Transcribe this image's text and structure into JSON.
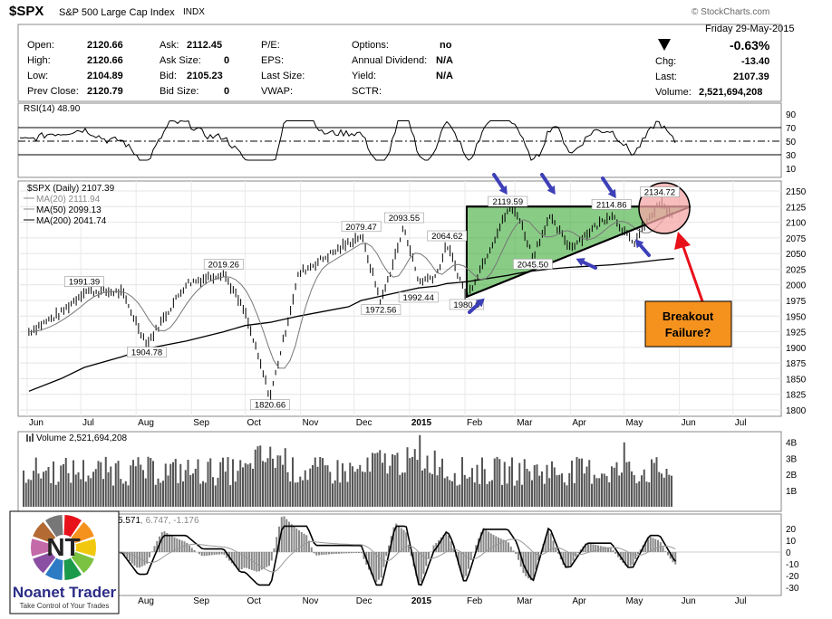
{
  "header": {
    "symbol": "$SPX",
    "name": "S&P 500 Large Cap Index",
    "exchange": "INDX",
    "watermark": "© StockCharts.com",
    "date": "Friday  29-May-2015",
    "pct_change": "-0.63%",
    "open_label": "Open:",
    "open": "2120.66",
    "high_label": "High:",
    "high": "2120.66",
    "low_label": "Low:",
    "low": "2104.89",
    "prev_close_label": "Prev Close:",
    "prev_close": "2120.79",
    "ask_label": "Ask:",
    "ask": "2112.45",
    "ask_size_label": "Ask Size:",
    "ask_size": "0",
    "bid_label": "Bid:",
    "bid": "2105.23",
    "bid_size_label": "Bid Size:",
    "bid_size": "0",
    "pe_label": "P/E:",
    "eps_label": "EPS:",
    "last_size_label": "Last Size:",
    "vwap_label": "VWAP:",
    "options_label": "Options:",
    "options": "no",
    "annual_div_label": "Annual Dividend:",
    "annual_div": "N/A",
    "yield_label": "Yield:",
    "yield": "N/A",
    "sctr_label": "SCTR:",
    "chg_label": "Chg:",
    "chg": "-13.40",
    "last_label": "Last:",
    "last": "2107.39",
    "volume_label": "Volume:",
    "volume": "2,521,694,208"
  },
  "rsi_panel": {
    "label": "RSI(14) 48.90",
    "ticks": [
      "90",
      "70",
      "50",
      "30",
      "10"
    ]
  },
  "price_panel": {
    "legend": [
      "$SPX (Daily) 2107.39",
      "MA(20) 2111.94",
      "MA(50) 2099.13",
      "MA(200) 2041.74"
    ]
  },
  "volume_panel": {
    "label": "Volume 2,521,694,208",
    "ticks": [
      "4B",
      "3B",
      "2B",
      "1B"
    ]
  },
  "macd_panel": {
    "label_main": "5.571",
    "label_rest": ", 6.747, -1.176",
    "ticks": [
      "20",
      "10",
      "0",
      "-10",
      "-20",
      "-30"
    ]
  },
  "x_axis_labels": [
    "Jun",
    "Jul",
    "Aug",
    "Sep",
    "Oct",
    "Nov",
    "Dec",
    "2015",
    "Feb",
    "Mar",
    "Apr",
    "May",
    "Jun",
    "Jul"
  ],
  "x_axis_labels_bottom": [
    "Aug",
    "Sep",
    "Oct",
    "Nov",
    "Dec",
    "2015",
    "Feb",
    "Mar",
    "Apr",
    "May",
    "Jun",
    "Jul"
  ],
  "annotation": {
    "line1": "Breakout",
    "line2": "Failure?",
    "box_color": "#f5921e",
    "arrow_color": "#e8111a"
  },
  "triangle_color": "#3aaa35",
  "arrow_color_blue": "#3d3fb8",
  "logo": {
    "title": "Noanet Trader",
    "tagline": "Take Control of Your Trades",
    "letters": "NT"
  },
  "chart_data": {
    "type": "line",
    "title": "$SPX (Daily)",
    "ylabel": "",
    "ylim": [
      1800,
      2150
    ],
    "y_ticks": [
      2150,
      2125,
      2100,
      2075,
      2050,
      2025,
      2000,
      1975,
      1950,
      1925,
      1900,
      1875,
      1850,
      1825,
      1800
    ],
    "x": [
      "2014-06-02",
      "2014-06-20",
      "2014-07-03",
      "2014-07-24",
      "2014-08-07",
      "2014-08-29",
      "2014-09-19",
      "2014-10-01",
      "2014-10-15",
      "2014-10-31",
      "2014-11-28",
      "2014-12-05",
      "2014-12-16",
      "2014-12-29",
      "2015-01-06",
      "2015-01-16",
      "2015-01-22",
      "2015-02-02",
      "2015-02-25",
      "2015-03-02",
      "2015-03-11",
      "2015-03-20",
      "2015-04-01",
      "2015-04-24",
      "2015-05-06",
      "2015-05-21",
      "2015-05-29"
    ],
    "series": [
      {
        "name": "$SPX (Daily)",
        "values": [
          1925,
          1955,
          1990,
          1988,
          1905,
          2002,
          2019,
          1955,
          1820,
          2018,
          2067,
          2079,
          1972,
          2093,
          2005,
          2015,
          2064,
          1980,
          2119,
          2117,
          2045,
          2108,
          2060,
          2114,
          2065,
          2131,
          2107
        ]
      },
      {
        "name": "MA(200)",
        "values": [
          1830,
          1850,
          1868,
          1885,
          1898,
          1910,
          1925,
          1935,
          1940,
          1950,
          1965,
          1975,
          1982,
          1990,
          1995,
          1998,
          2002,
          2005,
          2015,
          2018,
          2022,
          2025,
          2028,
          2032,
          2035,
          2040,
          2042
        ]
      }
    ],
    "point_labels": [
      {
        "x": "2014-07-03",
        "y": 1991.39,
        "text": "1991.39"
      },
      {
        "x": "2014-08-07",
        "y": 1904.78,
        "text": "1904.78"
      },
      {
        "x": "2014-09-19",
        "y": 2019.26,
        "text": "2019.26"
      },
      {
        "x": "2014-10-15",
        "y": 1820.66,
        "text": "1820.66"
      },
      {
        "x": "2014-12-05",
        "y": 2079.47,
        "text": "2079.47"
      },
      {
        "x": "2014-12-16",
        "y": 1972.56,
        "text": "1972.56"
      },
      {
        "x": "2014-12-29",
        "y": 2093.55,
        "text": "2093.55"
      },
      {
        "x": "2015-01-06",
        "y": 1992.44,
        "text": "1992.44"
      },
      {
        "x": "2015-01-22",
        "y": 2064.62,
        "text": "2064.62"
      },
      {
        "x": "2015-02-02",
        "y": 1980.9,
        "text": "1980.9"
      },
      {
        "x": "2015-02-25",
        "y": 2119.59,
        "text": "2119.59"
      },
      {
        "x": "2015-03-11",
        "y": 2045.5,
        "text": "2045.50"
      },
      {
        "x": "2015-04-24",
        "y": 2114.86,
        "text": "2114.86"
      },
      {
        "x": "2015-05-21",
        "y": 2134.72,
        "text": "2134.72"
      }
    ]
  }
}
